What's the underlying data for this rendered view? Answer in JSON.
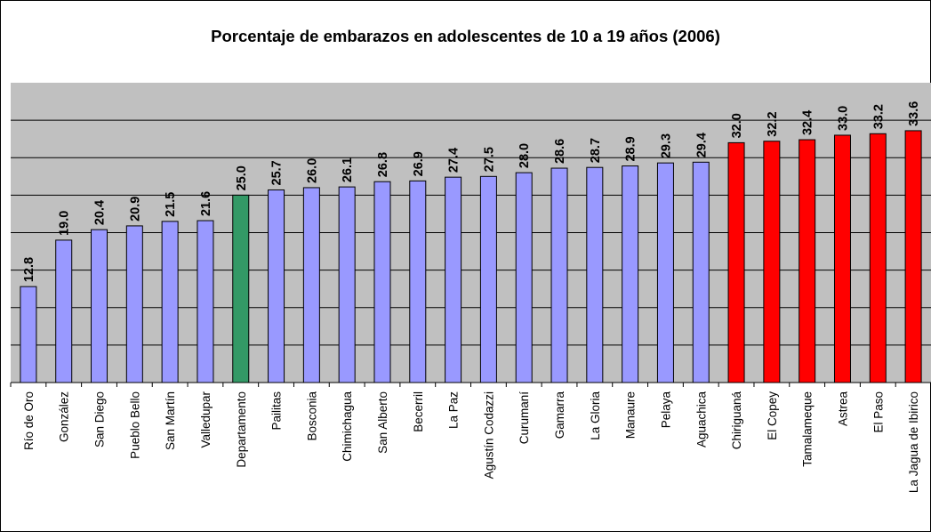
{
  "chart_data": {
    "type": "bar",
    "title": "Porcentaje de embarazos en adolescentes de 10 a 19 años (2006)",
    "xlabel": "",
    "ylabel": "",
    "ylim": [
      0,
      40
    ],
    "grid": true,
    "legend": "none",
    "colors": {
      "municipio": "#9999ff",
      "departamento": "#339966",
      "alto": "#ff0000",
      "plot_bg": "#c0c0c0"
    },
    "categories": [
      "Río de Oro",
      "González",
      "San Diego",
      "Pueblo Bello",
      "San Martín",
      "Valledupar",
      "Departamento",
      "Pailitas",
      "Bosconia",
      "Chimichagua",
      "San Alberto",
      "Becerril",
      "La Paz",
      "Agustín Codazzi",
      "Curumaní",
      "Gamarra",
      "La Gloria",
      "Manaure",
      "Pelaya",
      "Aguachica",
      "Chiriguaná",
      "El Copey",
      "Tamalameque",
      "Astrea",
      "El Paso",
      "La Jagua de Ibirico"
    ],
    "values": [
      12.8,
      19.0,
      20.4,
      20.9,
      21.5,
      21.6,
      25.0,
      25.7,
      26.0,
      26.1,
      26.8,
      26.9,
      27.4,
      27.5,
      28.0,
      28.6,
      28.7,
      28.9,
      29.3,
      29.4,
      32.0,
      32.2,
      32.4,
      33.0,
      33.2,
      33.6
    ],
    "value_labels": [
      "12.8",
      "19.0",
      "20.4",
      "20.9",
      "21.5",
      "21.6",
      "25.0",
      "25.7",
      "26.0",
      "26.1",
      "26.8",
      "26.9",
      "27.4",
      "27.5",
      "28.0",
      "28.6",
      "28.7",
      "28.9",
      "29.3",
      "29.4",
      "32.0",
      "32.2",
      "32.4",
      "33.0",
      "33.2",
      "33.6"
    ],
    "bar_groups": [
      "municipio",
      "municipio",
      "municipio",
      "municipio",
      "municipio",
      "municipio",
      "departamento",
      "municipio",
      "municipio",
      "municipio",
      "municipio",
      "municipio",
      "municipio",
      "municipio",
      "municipio",
      "municipio",
      "municipio",
      "municipio",
      "municipio",
      "municipio",
      "alto",
      "alto",
      "alto",
      "alto",
      "alto",
      "alto"
    ]
  }
}
